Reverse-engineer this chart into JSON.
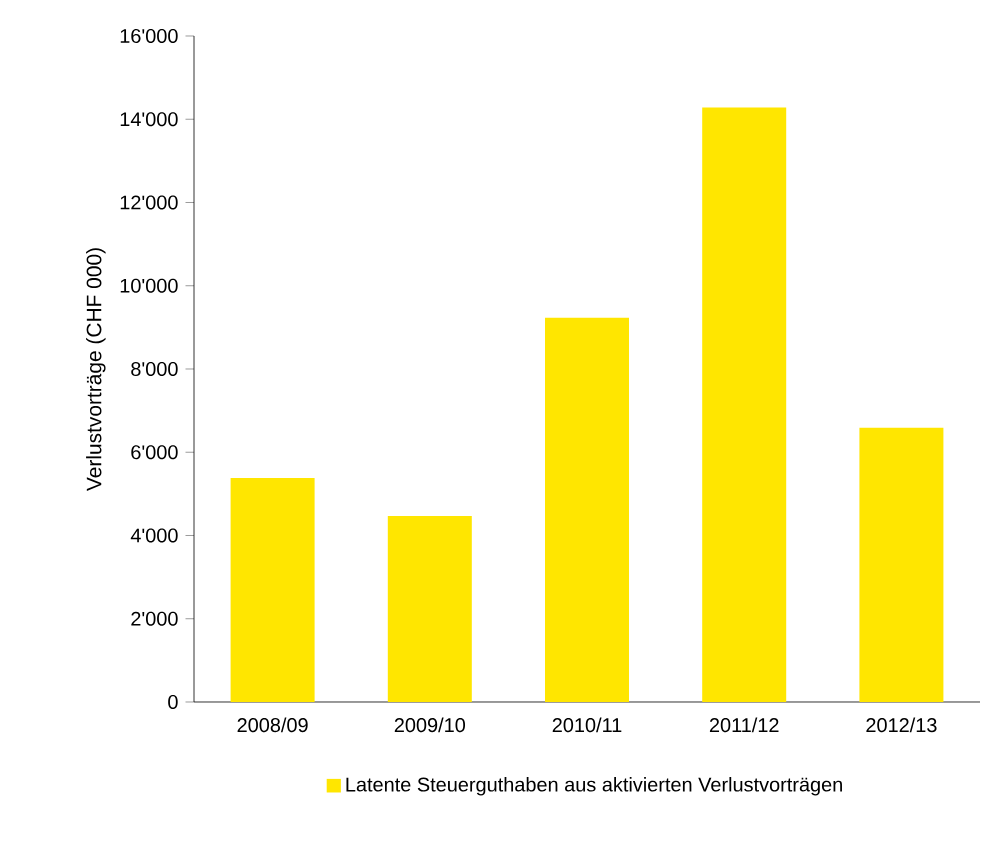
{
  "chart_data": {
    "type": "bar",
    "ylabel": "Verlustvorträge (CHF 000)",
    "categories": [
      "2008/09",
      "2009/10",
      "2010/11",
      "2011/12",
      "2012/13"
    ],
    "series": [
      {
        "name": "Latente Steuerguthaben aus aktivierten Verlustvorträgen",
        "color": "#ffe600",
        "values": [
          5380,
          4470,
          9230,
          14280,
          6590
        ]
      }
    ],
    "ylim": [
      0,
      16000
    ],
    "yticks": [
      {
        "value": 0,
        "label": "0"
      },
      {
        "value": 2000,
        "label": "2'000"
      },
      {
        "value": 4000,
        "label": "4'000"
      },
      {
        "value": 6000,
        "label": "6'000"
      },
      {
        "value": 8000,
        "label": "8'000"
      },
      {
        "value": 10000,
        "label": "10'000"
      },
      {
        "value": 12000,
        "label": "12'000"
      },
      {
        "value": 14000,
        "label": "14'000"
      },
      {
        "value": 16000,
        "label": "16'000"
      }
    ],
    "grid": false,
    "legend": "bottom"
  }
}
